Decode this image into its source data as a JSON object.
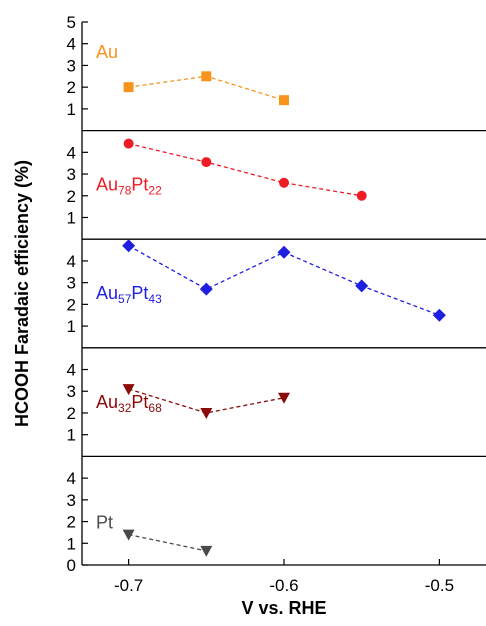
{
  "chart_data": {
    "type": "line",
    "ylabel": "HCOOH Faradaic efficiency (%)",
    "xlabel": "V vs. RHE",
    "xlim": [
      -0.73,
      -0.47
    ],
    "xticks": [
      -0.7,
      -0.6,
      -0.5
    ],
    "xtick_labels": [
      "-0.7",
      "-0.6",
      "-0.5"
    ],
    "grid": false,
    "panels": [
      {
        "label_parts": [
          {
            "text": "Au",
            "sub": false
          }
        ],
        "color": "#f7941d",
        "marker": "square",
        "ylim": [
          0,
          5
        ],
        "yticks": [
          1,
          2,
          3,
          4,
          5
        ],
        "points": [
          {
            "x": -0.7,
            "y": 2.0
          },
          {
            "x": -0.65,
            "y": 2.5
          },
          {
            "x": -0.6,
            "y": 1.4
          }
        ]
      },
      {
        "label_parts": [
          {
            "text": "Au",
            "sub": false
          },
          {
            "text": "78",
            "sub": true
          },
          {
            "text": "Pt",
            "sub": false
          },
          {
            "text": "22",
            "sub": true
          }
        ],
        "color": "#ee1c25",
        "marker": "circle",
        "ylim": [
          0,
          5
        ],
        "yticks": [
          1,
          2,
          3,
          4
        ],
        "points": [
          {
            "x": -0.7,
            "y": 4.4
          },
          {
            "x": -0.65,
            "y": 3.55
          },
          {
            "x": -0.6,
            "y": 2.6
          },
          {
            "x": -0.55,
            "y": 2.0
          }
        ]
      },
      {
        "label_parts": [
          {
            "text": "Au",
            "sub": false
          },
          {
            "text": "57",
            "sub": true
          },
          {
            "text": "Pt",
            "sub": false
          },
          {
            "text": "43",
            "sub": true
          }
        ],
        "color": "#1f1fe0",
        "marker": "diamond",
        "ylim": [
          0,
          5
        ],
        "yticks": [
          1,
          2,
          3,
          4
        ],
        "points": [
          {
            "x": -0.7,
            "y": 4.7
          },
          {
            "x": -0.65,
            "y": 2.7
          },
          {
            "x": -0.6,
            "y": 4.4
          },
          {
            "x": -0.55,
            "y": 2.85
          },
          {
            "x": -0.5,
            "y": 1.5
          }
        ]
      },
      {
        "label_parts": [
          {
            "text": "Au",
            "sub": false
          },
          {
            "text": "32",
            "sub": true
          },
          {
            "text": "Pt",
            "sub": false
          },
          {
            "text": "68",
            "sub": true
          }
        ],
        "color": "#8b0a0a",
        "marker": "triangle-down",
        "ylim": [
          0,
          5
        ],
        "yticks": [
          1,
          2,
          3,
          4
        ],
        "points": [
          {
            "x": -0.7,
            "y": 3.1
          },
          {
            "x": -0.65,
            "y": 2.0
          },
          {
            "x": -0.6,
            "y": 2.7
          }
        ]
      },
      {
        "label_parts": [
          {
            "text": "Pt",
            "sub": false
          }
        ],
        "color": "#4a4a4a",
        "marker": "triangle-down",
        "ylim": [
          0,
          5
        ],
        "yticks": [
          0,
          1,
          2,
          3,
          4
        ],
        "points": [
          {
            "x": -0.7,
            "y": 1.4
          },
          {
            "x": -0.65,
            "y": 0.65
          }
        ]
      }
    ]
  }
}
